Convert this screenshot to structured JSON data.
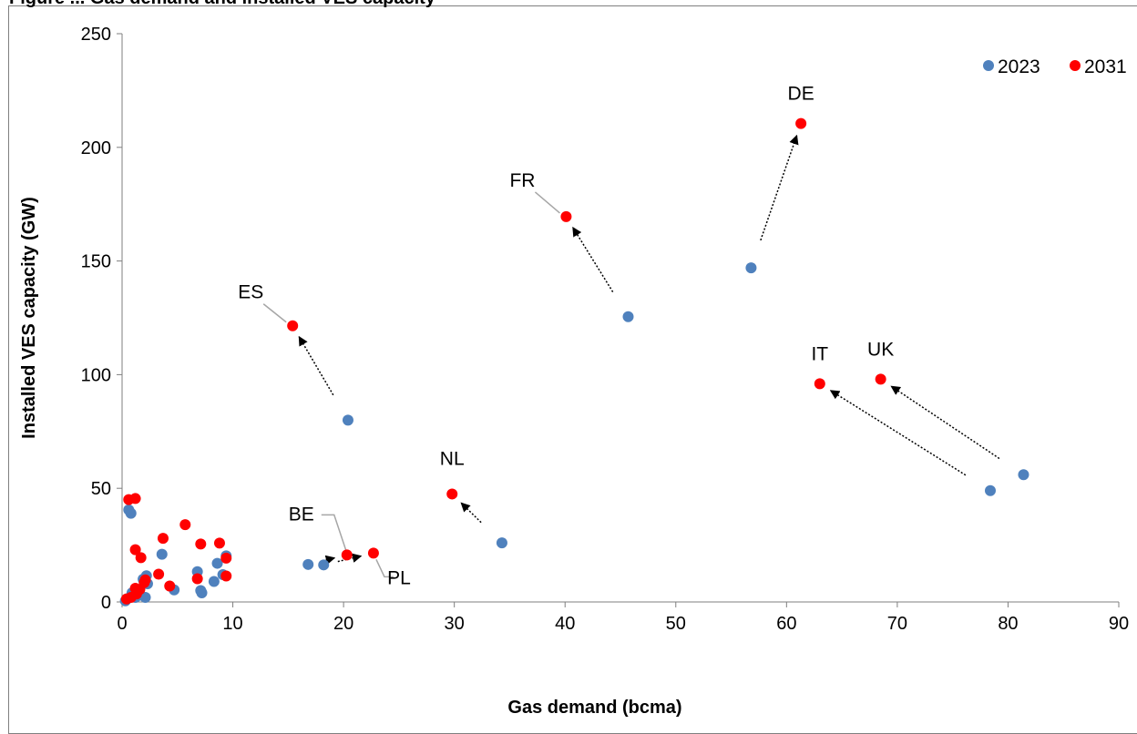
{
  "chart_data": {
    "type": "scatter",
    "title": "Figure ... Gas demand and installed VES capacity",
    "xlabel": "Gas demand (bcma)",
    "ylabel": "Installed VES capacity (GW)",
    "xlim": [
      0,
      90
    ],
    "ylim": [
      0,
      250
    ],
    "x_ticks": [
      "0",
      "10",
      "20",
      "30",
      "40",
      "50",
      "60",
      "70",
      "80",
      "90"
    ],
    "y_ticks": [
      "0",
      "50",
      "100",
      "150",
      "200",
      "250"
    ],
    "legend_position": "top-right",
    "grid": false,
    "series": [
      {
        "name": "2023",
        "color": "#4f81bd",
        "points": [
          [
            20.4,
            80
          ],
          [
            45.7,
            125.5
          ],
          [
            56.8,
            147
          ],
          [
            78.4,
            49
          ],
          [
            81.4,
            56
          ],
          [
            34.3,
            26
          ],
          [
            16.8,
            16.5
          ],
          [
            18.2,
            16.3
          ],
          [
            0.6,
            40.5
          ],
          [
            0.8,
            39
          ],
          [
            3.6,
            21
          ],
          [
            6.8,
            13.3
          ],
          [
            8.6,
            17
          ],
          [
            9.4,
            20.3
          ],
          [
            9.1,
            12
          ],
          [
            8.3,
            9
          ],
          [
            2.2,
            11.5
          ],
          [
            1.9,
            10
          ],
          [
            2.3,
            8
          ],
          [
            4.7,
            5.3
          ],
          [
            7.1,
            5
          ],
          [
            7.2,
            4
          ],
          [
            2.1,
            2
          ],
          [
            1.4,
            2.8
          ],
          [
            0.9,
            4
          ],
          [
            0.5,
            1.5
          ],
          [
            0.3,
            0.5
          ],
          [
            1.2,
            2
          ],
          [
            1.6,
            3
          ]
        ]
      },
      {
        "name": "2031",
        "color": "#ff0000",
        "points": [
          [
            15.4,
            121.5
          ],
          [
            40.1,
            169.5
          ],
          [
            61.3,
            210.5
          ],
          [
            63.0,
            96
          ],
          [
            68.5,
            98
          ],
          [
            29.8,
            47.5
          ],
          [
            20.3,
            20.7
          ],
          [
            22.7,
            21.5
          ],
          [
            0.6,
            45
          ],
          [
            1.2,
            45.5
          ],
          [
            1.2,
            23
          ],
          [
            1.7,
            19.5
          ],
          [
            3.7,
            28
          ],
          [
            5.7,
            34
          ],
          [
            7.1,
            25.5
          ],
          [
            8.8,
            25.9
          ],
          [
            9.4,
            19.3
          ],
          [
            9.4,
            11.4
          ],
          [
            6.8,
            10.2
          ],
          [
            3.3,
            12.2
          ],
          [
            2.1,
            9.7
          ],
          [
            4.3,
            7
          ],
          [
            1.2,
            6
          ],
          [
            1.6,
            5.5
          ],
          [
            1.3,
            3.5
          ],
          [
            0.8,
            2
          ],
          [
            0.4,
            1.3
          ],
          [
            2.0,
            8.5
          ]
        ]
      }
    ],
    "labels": [
      {
        "text": "ES",
        "x": 15.4,
        "y": 121.5
      },
      {
        "text": "FR",
        "x": 40.1,
        "y": 169.5
      },
      {
        "text": "DE",
        "x": 61.3,
        "y": 210.5
      },
      {
        "text": "IT",
        "x": 63.0,
        "y": 96
      },
      {
        "text": "UK",
        "x": 68.5,
        "y": 98
      },
      {
        "text": "NL",
        "x": 29.8,
        "y": 47.5
      },
      {
        "text": "BE",
        "x": 20.3,
        "y": 20.7
      },
      {
        "text": "PL",
        "x": 22.7,
        "y": 21.5
      }
    ],
    "arrows": [
      {
        "from": [
          20.4,
          80
        ],
        "to": [
          15.4,
          121.5
        ]
      },
      {
        "from": [
          45.7,
          125.5
        ],
        "to": [
          40.1,
          169.5
        ]
      },
      {
        "from": [
          56.8,
          147
        ],
        "to": [
          61.3,
          210.5
        ]
      },
      {
        "from": [
          78.4,
          49
        ],
        "to": [
          63.0,
          96
        ]
      },
      {
        "from": [
          81.4,
          56
        ],
        "to": [
          68.5,
          98
        ]
      },
      {
        "from": [
          34.3,
          26
        ],
        "to": [
          29.8,
          47.5
        ]
      },
      {
        "from": [
          16.8,
          16.5
        ],
        "to": [
          20.3,
          20.7
        ]
      },
      {
        "from": [
          18.2,
          16.3
        ],
        "to": [
          22.7,
          21.5
        ]
      }
    ]
  }
}
